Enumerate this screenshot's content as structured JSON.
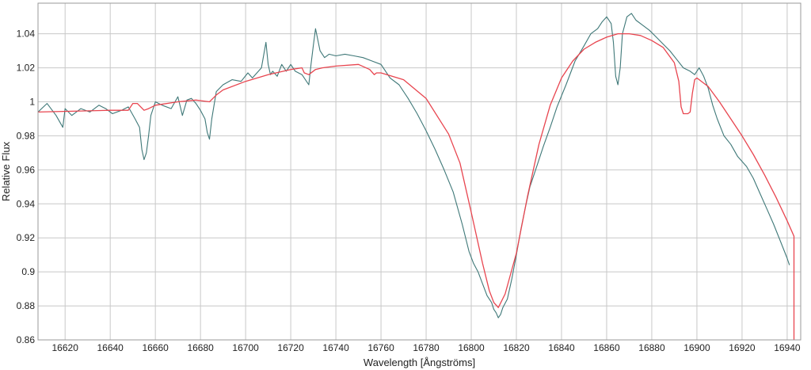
{
  "chart_data": {
    "type": "line",
    "xlabel": "Wavelength [Ångströms]",
    "ylabel": "Relative Flux",
    "xlim": [
      16608,
      16946
    ],
    "ylim": [
      0.86,
      1.058
    ],
    "x_ticks": [
      16620,
      16640,
      16660,
      16680,
      16700,
      16720,
      16740,
      16760,
      16780,
      16800,
      16820,
      16840,
      16860,
      16880,
      16900,
      16920,
      16940
    ],
    "x_tick_labels": [
      "16620",
      "16640",
      "16660",
      "16680",
      "16700",
      "16720",
      "16740",
      "16760",
      "16780",
      "16800",
      "16820",
      "16840",
      "16860",
      "16880",
      "16900",
      "16920",
      "16940"
    ],
    "y_ticks": [
      0.86,
      0.88,
      0.9,
      0.92,
      0.94,
      0.96,
      0.98,
      1.0,
      1.02,
      1.04
    ],
    "y_tick_labels": [
      "0.86",
      "0.88",
      "0.9",
      "0.92",
      "0.94",
      "0.96",
      "0.98",
      "1",
      "1.02",
      "1.04"
    ],
    "grid": true,
    "series": [
      {
        "color": "#3f7878",
        "x": [
          16608,
          16612,
          16616,
          16619,
          16620,
          16623,
          16627,
          16631,
          16635,
          16638,
          16641,
          16645,
          16648,
          16651,
          16653,
          16654,
          16655,
          16656,
          16657,
          16658,
          16660,
          16663,
          16667,
          16670,
          16672,
          16674,
          16676,
          16678,
          16680,
          16682,
          16683,
          16684,
          16685,
          16687,
          16690,
          16694,
          16698,
          16701,
          16703,
          16705,
          16707,
          16709,
          16710,
          16711,
          16712,
          16714,
          16716,
          16718,
          16720,
          16722,
          16725,
          16728,
          16729,
          16730,
          16731,
          16733,
          16735,
          16737,
          16740,
          16744,
          16748,
          16752,
          16756,
          16760,
          16764,
          16768,
          16772,
          16776,
          16780,
          16784,
          16788,
          16792,
          16796,
          16799,
          16801,
          16803,
          16805,
          16807,
          16809,
          16810,
          16811,
          16812,
          16813,
          16814,
          16816,
          16818,
          16820,
          16822,
          16824,
          16826,
          16829,
          16832,
          16835,
          16838,
          16842,
          16846,
          16850,
          16853,
          16856,
          16858,
          16860,
          16862,
          16863,
          16864,
          16865,
          16866,
          16867,
          16869,
          16871,
          16873,
          16876,
          16879,
          16882,
          16885,
          16888,
          16891,
          16894,
          16897,
          16899,
          16901,
          16903,
          16905,
          16907,
          16909,
          16912,
          16915,
          16918,
          16922,
          16925,
          16928,
          16931,
          16934,
          16937,
          16940,
          16941
        ],
        "y": [
          0.994,
          0.999,
          0.992,
          0.985,
          0.996,
          0.992,
          0.996,
          0.994,
          0.998,
          0.996,
          0.993,
          0.995,
          0.997,
          0.99,
          0.985,
          0.972,
          0.966,
          0.97,
          0.98,
          0.992,
          1.0,
          0.998,
          0.996,
          1.003,
          0.992,
          1.001,
          1.002,
          0.999,
          0.995,
          0.99,
          0.982,
          0.978,
          0.99,
          1.006,
          1.01,
          1.013,
          1.012,
          1.017,
          1.014,
          1.017,
          1.02,
          1.035,
          1.022,
          1.016,
          1.018,
          1.015,
          1.022,
          1.018,
          1.022,
          1.018,
          1.016,
          1.01,
          1.022,
          1.033,
          1.043,
          1.03,
          1.026,
          1.028,
          1.027,
          1.028,
          1.027,
          1.026,
          1.024,
          1.022,
          1.014,
          1.01,
          1.002,
          0.993,
          0.983,
          0.972,
          0.96,
          0.947,
          0.928,
          0.912,
          0.905,
          0.9,
          0.893,
          0.886,
          0.882,
          0.878,
          0.876,
          0.873,
          0.875,
          0.879,
          0.884,
          0.896,
          0.91,
          0.925,
          0.938,
          0.95,
          0.962,
          0.974,
          0.985,
          0.997,
          1.01,
          1.024,
          1.033,
          1.04,
          1.043,
          1.047,
          1.05,
          1.046,
          1.035,
          1.015,
          1.01,
          1.02,
          1.04,
          1.05,
          1.052,
          1.048,
          1.045,
          1.042,
          1.038,
          1.034,
          1.03,
          1.025,
          1.02,
          1.018,
          1.016,
          1.02,
          1.015,
          1.008,
          0.998,
          0.99,
          0.98,
          0.975,
          0.968,
          0.962,
          0.955,
          0.946,
          0.937,
          0.928,
          0.918,
          0.908,
          0.904
        ]
      },
      {
        "color": "#e8454f",
        "x": [
          16608,
          16640,
          16648,
          16650,
          16652,
          16655,
          16657,
          16660,
          16670,
          16678,
          16684,
          16687,
          16690,
          16700,
          16710,
          16720,
          16725,
          16726,
          16728,
          16731,
          16734,
          16740,
          16750,
          16755,
          16757,
          16758,
          16760,
          16770,
          16780,
          16790,
          16795,
          16800,
          16805,
          16808,
          16810,
          16812,
          16815,
          16820,
          16825,
          16830,
          16835,
          16840,
          16845,
          16850,
          16855,
          16860,
          16865,
          16870,
          16875,
          16880,
          16885,
          16890,
          16892,
          16893,
          16894,
          16896,
          16897,
          16898,
          16899,
          16900,
          16905,
          16910,
          16915,
          16920,
          16925,
          16930,
          16935,
          16940,
          16943,
          16943,
          16943
        ],
        "y": [
          0.994,
          0.995,
          0.995,
          0.999,
          0.999,
          0.995,
          0.996,
          0.998,
          1.0,
          1.001,
          1.0,
          1.004,
          1.007,
          1.012,
          1.016,
          1.019,
          1.02,
          1.017,
          1.016,
          1.019,
          1.02,
          1.021,
          1.022,
          1.019,
          1.016,
          1.017,
          1.017,
          1.013,
          1.002,
          0.981,
          0.964,
          0.935,
          0.905,
          0.889,
          0.882,
          0.879,
          0.887,
          0.911,
          0.945,
          0.975,
          0.998,
          1.014,
          1.024,
          1.031,
          1.035,
          1.038,
          1.04,
          1.04,
          1.039,
          1.036,
          1.032,
          1.023,
          1.012,
          0.997,
          0.993,
          0.993,
          0.994,
          1.005,
          1.013,
          1.014,
          1.009,
          1.0,
          0.99,
          0.98,
          0.969,
          0.957,
          0.944,
          0.93,
          0.921,
          0.9,
          0.86
        ]
      }
    ]
  }
}
